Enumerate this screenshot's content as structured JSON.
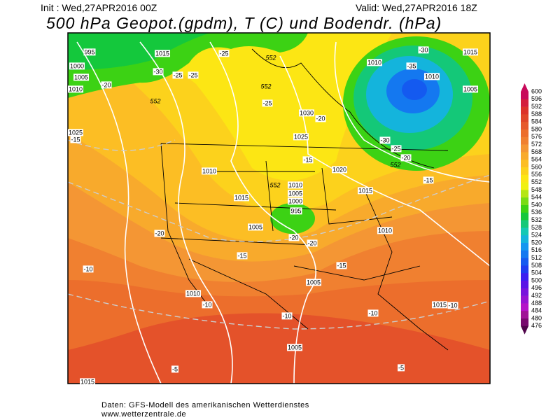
{
  "header": {
    "init": "Init : Wed,27APR2016 00Z",
    "valid": "Valid: Wed,27APR2016 18Z",
    "title": "500 hPa Geopot.(gpdm), T (C) und Bodendr. (hPa)"
  },
  "colorbar": {
    "levels": [
      600,
      596,
      592,
      588,
      584,
      580,
      576,
      572,
      568,
      564,
      560,
      556,
      552,
      548,
      544,
      540,
      536,
      532,
      528,
      524,
      520,
      516,
      512,
      508,
      504,
      500,
      496,
      492,
      488,
      484,
      480,
      476
    ],
    "colors": [
      "#c80a5a",
      "#d41e3c",
      "#dc3228",
      "#e04628",
      "#e65a2c",
      "#ec6e2c",
      "#f08030",
      "#f49634",
      "#f8aa2c",
      "#fcbe24",
      "#fcd21c",
      "#fce614",
      "#f0f010",
      "#b4e614",
      "#78dc14",
      "#3cd214",
      "#14c83c",
      "#14c878",
      "#14c8b4",
      "#14b4dc",
      "#1496f0",
      "#1478f0",
      "#145af0",
      "#1e3cf0",
      "#3c1ef0",
      "#5a14e6",
      "#7814dc",
      "#9614d2",
      "#b414c8",
      "#a01496",
      "#780a6e",
      "#50054b"
    ]
  },
  "map_labels": {
    "pressure": [
      995,
      1015,
      1000,
      1005,
      1010,
      1010,
      1010,
      1015,
      1005,
      1030,
      1025,
      1025,
      1010,
      1020,
      1015,
      1010,
      1005,
      1000,
      995,
      1015,
      1005,
      1010,
      1005,
      1010,
      1015,
      1005,
      1015
    ],
    "temperature": [
      -25,
      -30,
      -25,
      -25,
      -20,
      -25,
      -20,
      -30,
      -35,
      -30,
      -25,
      -20,
      -15,
      -15,
      -20,
      -15,
      -20,
      -20,
      -15,
      -10,
      -10,
      -10,
      -10,
      -10,
      -5,
      -5,
      -15
    ],
    "geopotential": [
      552,
      552,
      552,
      552,
      552
    ]
  },
  "footer": {
    "source": "Daten: GFS-Modell des amerikanischen Wetterdienstes",
    "url": "www.wetterzentrale.de"
  }
}
